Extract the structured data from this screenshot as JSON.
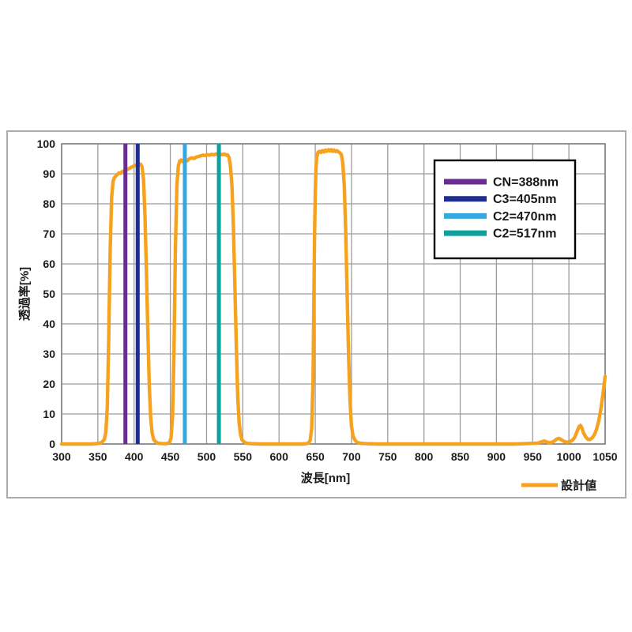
{
  "chart_data": {
    "type": "line",
    "title": "",
    "xlabel": "波長[nm]",
    "ylabel": "透過率[%]",
    "xlim": [
      300,
      1050
    ],
    "ylim": [
      0,
      100
    ],
    "x_ticks": [
      300,
      350,
      400,
      450,
      500,
      550,
      600,
      650,
      700,
      750,
      800,
      850,
      900,
      950,
      1000,
      1050
    ],
    "y_ticks": [
      0,
      10,
      20,
      30,
      40,
      50,
      60,
      70,
      80,
      90,
      100
    ],
    "grid": true,
    "legend_position": "inside-upper-right",
    "series_legend_position": "bottom-right",
    "series": [
      {
        "name": "設計値",
        "color": "#F6A21E",
        "points": [
          [
            300,
            0
          ],
          [
            315,
            0
          ],
          [
            330,
            0
          ],
          [
            342,
            0
          ],
          [
            348,
            0.1
          ],
          [
            353,
            0.3
          ],
          [
            356,
            0.7
          ],
          [
            359,
            1.5
          ],
          [
            361,
            4
          ],
          [
            363,
            12
          ],
          [
            365,
            35
          ],
          [
            367,
            65
          ],
          [
            369,
            82
          ],
          [
            371,
            87.5
          ],
          [
            373,
            88.8
          ],
          [
            375,
            89.3
          ],
          [
            377,
            89.8
          ],
          [
            379,
            90.3
          ],
          [
            381,
            90.1
          ],
          [
            383,
            90.6
          ],
          [
            385,
            90.9
          ],
          [
            388,
            91.2
          ],
          [
            391,
            91.5
          ],
          [
            394,
            91.9
          ],
          [
            397,
            92.3
          ],
          [
            400,
            92.6
          ],
          [
            403,
            92.9
          ],
          [
            405,
            93.1
          ],
          [
            407,
            93.3
          ],
          [
            409,
            93.2
          ],
          [
            411,
            92.3
          ],
          [
            413,
            88
          ],
          [
            415,
            76
          ],
          [
            417,
            58
          ],
          [
            419,
            37
          ],
          [
            421,
            19
          ],
          [
            423,
            8.5
          ],
          [
            425,
            3.5
          ],
          [
            427,
            1.5
          ],
          [
            430,
            0.6
          ],
          [
            434,
            0.2
          ],
          [
            439,
            0.1
          ],
          [
            444,
            0.1
          ],
          [
            447,
            0.2
          ],
          [
            449,
            0.6
          ],
          [
            451,
            2
          ],
          [
            453,
            9
          ],
          [
            455,
            30
          ],
          [
            457,
            65
          ],
          [
            459,
            86
          ],
          [
            461,
            92.5
          ],
          [
            463,
            94.3
          ],
          [
            465,
            94.6
          ],
          [
            467,
            94.1
          ],
          [
            469,
            94.4
          ],
          [
            471,
            94.6
          ],
          [
            473,
            94.3
          ],
          [
            475,
            94.8
          ],
          [
            477,
            95.1
          ],
          [
            480,
            95.3
          ],
          [
            483,
            95.1
          ],
          [
            486,
            95.6
          ],
          [
            489,
            95.8
          ],
          [
            492,
            96
          ],
          [
            495,
            96.2
          ],
          [
            498,
            96.1
          ],
          [
            501,
            96.4
          ],
          [
            504,
            96.2
          ],
          [
            507,
            96.5
          ],
          [
            510,
            96.3
          ],
          [
            513,
            96.6
          ],
          [
            516,
            96.4
          ],
          [
            519,
            96.5
          ],
          [
            522,
            96.4
          ],
          [
            525,
            96.6
          ],
          [
            527,
            96.2
          ],
          [
            529,
            96.3
          ],
          [
            531,
            95.5
          ],
          [
            533,
            92.5
          ],
          [
            535,
            86
          ],
          [
            537,
            73
          ],
          [
            539,
            54
          ],
          [
            541,
            33
          ],
          [
            543,
            16
          ],
          [
            545,
            7
          ],
          [
            547,
            3
          ],
          [
            549,
            1.4
          ],
          [
            552,
            0.6
          ],
          [
            556,
            0.2
          ],
          [
            562,
            0.1
          ],
          [
            575,
            0
          ],
          [
            590,
            0
          ],
          [
            605,
            0
          ],
          [
            620,
            0
          ],
          [
            632,
            0
          ],
          [
            638,
            0.1
          ],
          [
            641,
            0.4
          ],
          [
            643,
            1.2
          ],
          [
            645,
            5
          ],
          [
            647,
            22
          ],
          [
            648,
            45
          ],
          [
            649,
            68
          ],
          [
            650,
            84
          ],
          [
            651,
            92
          ],
          [
            652,
            95.5
          ],
          [
            654,
            97.2
          ],
          [
            656,
            97.5
          ],
          [
            658,
            97.1
          ],
          [
            660,
            97.7
          ],
          [
            662,
            97.3
          ],
          [
            664,
            97.9
          ],
          [
            666,
            97.5
          ],
          [
            668,
            98
          ],
          [
            670,
            97.6
          ],
          [
            672,
            98
          ],
          [
            674,
            97.5
          ],
          [
            676,
            97.9
          ],
          [
            678,
            97.4
          ],
          [
            680,
            97.7
          ],
          [
            682,
            97.3
          ],
          [
            684,
            97
          ],
          [
            686,
            96.4
          ],
          [
            688,
            93.5
          ],
          [
            690,
            86
          ],
          [
            692,
            71
          ],
          [
            694,
            50
          ],
          [
            696,
            29
          ],
          [
            698,
            14
          ],
          [
            700,
            6
          ],
          [
            702,
            2.7
          ],
          [
            705,
            1.2
          ],
          [
            708,
            0.5
          ],
          [
            713,
            0.2
          ],
          [
            720,
            0.1
          ],
          [
            735,
            0
          ],
          [
            755,
            0
          ],
          [
            775,
            0
          ],
          [
            800,
            0
          ],
          [
            825,
            0
          ],
          [
            850,
            0
          ],
          [
            875,
            0
          ],
          [
            900,
            0
          ],
          [
            925,
            0
          ],
          [
            940,
            0.1
          ],
          [
            950,
            0.2
          ],
          [
            956,
            0.3
          ],
          [
            960,
            0.5
          ],
          [
            963,
            0.8
          ],
          [
            966,
            1
          ],
          [
            969,
            0.7
          ],
          [
            972,
            0.4
          ],
          [
            976,
            0.5
          ],
          [
            980,
            1
          ],
          [
            983,
            1.6
          ],
          [
            986,
            1.9
          ],
          [
            989,
            1.5
          ],
          [
            993,
            0.9
          ],
          [
            997,
            0.6
          ],
          [
            1001,
            0.7
          ],
          [
            1005,
            1.3
          ],
          [
            1008,
            2.2
          ],
          [
            1011,
            4
          ],
          [
            1014,
            5.8
          ],
          [
            1016,
            6.2
          ],
          [
            1018,
            5.3
          ],
          [
            1020,
            3.8
          ],
          [
            1023,
            2.4
          ],
          [
            1026,
            1.6
          ],
          [
            1029,
            1.5
          ],
          [
            1032,
            2
          ],
          [
            1035,
            3
          ],
          [
            1038,
            4.8
          ],
          [
            1041,
            7.5
          ],
          [
            1044,
            11.5
          ],
          [
            1047,
            16.5
          ],
          [
            1050,
            22.5
          ]
        ]
      }
    ],
    "marker_lines": [
      {
        "label": "CN=388nm",
        "x": 388,
        "color": "#6A2C91"
      },
      {
        "label": "C3=405nm",
        "x": 405,
        "color": "#1F2E8C"
      },
      {
        "label": "C2=470nm",
        "x": 470,
        "color": "#35A8DF"
      },
      {
        "label": "C2=517nm",
        "x": 517,
        "color": "#0DA09C"
      }
    ]
  },
  "style_colors": {
    "grid": "#9c9c9c",
    "plot_border": "#7f7f7f",
    "frame_border": "#ababab",
    "text": "#1a1a1a",
    "legend_border": "#000000",
    "background": "#ffffff"
  }
}
